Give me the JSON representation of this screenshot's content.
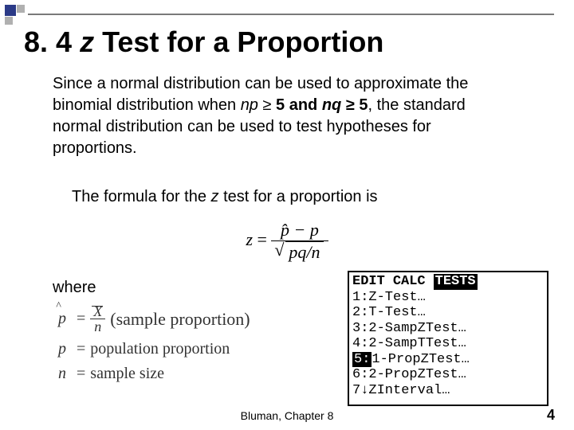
{
  "title_prefix": "8. 4  ",
  "title_z": "z",
  "title_rest": " Test for a Proportion",
  "body": {
    "p1a": "Since a normal distribution can be used to approximate the binomial distribution when ",
    "np": "np",
    "geq1": " ≥ ",
    "five1": "5",
    "and": " and ",
    "nq": "nq",
    "geq2": " ≥ ",
    "five2": "5",
    "p1b": ", the standard normal distribution can be used to test hypotheses for proportions."
  },
  "formula_intro_a": "The formula for the ",
  "formula_intro_z": "z",
  "formula_intro_b": " test for a proportion is",
  "formula": {
    "lhs": "z",
    "eq": " = ",
    "num_a": "p̂ − p",
    "den_inner": "pq/n"
  },
  "where": "where",
  "defs": {
    "phat_sym": "p",
    "phat_eq": "=",
    "xbar": "X",
    "n_small": "n",
    "phat_label": "(sample proportion)",
    "p_sym": "p",
    "p_eq": "=",
    "p_label": "population proportion",
    "n_sym": "n",
    "n_eq": "=",
    "n_label": "sample size"
  },
  "calc": {
    "h1": "EDIT",
    "h2": "CALC",
    "h3": "TESTS",
    "r1": "1:Z-Test…",
    "r2": "2:T-Test…",
    "r3": "3:2-SampZTest…",
    "r4": "4:2-SampTTest…",
    "r5n": "5:",
    "r5t": "1-PropZTest…",
    "r6": "6:2-PropZTest…",
    "r7": "7↓ZInterval…"
  },
  "footer": "Bluman, Chapter 8",
  "pagenum": "4"
}
